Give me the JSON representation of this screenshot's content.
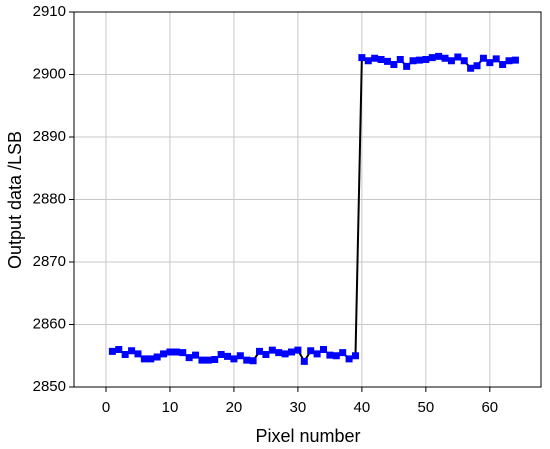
{
  "chart_data": {
    "type": "line",
    "x_label": "Pixel number",
    "y_label": "Output data /LSB",
    "x": [
      1,
      2,
      3,
      4,
      5,
      6,
      7,
      8,
      9,
      10,
      11,
      12,
      13,
      14,
      15,
      16,
      17,
      18,
      19,
      20,
      21,
      22,
      23,
      24,
      25,
      26,
      27,
      28,
      29,
      30,
      31,
      32,
      33,
      34,
      35,
      36,
      37,
      38,
      39,
      40,
      41,
      42,
      43,
      44,
      45,
      46,
      47,
      48,
      49,
      50,
      51,
      52,
      53,
      54,
      55,
      56,
      57,
      58,
      59,
      60,
      61,
      62,
      63,
      64
    ],
    "series": [
      {
        "color": "#0000ff",
        "line_color": "#000000",
        "values": [
          2855.7,
          2856,
          2855.2,
          2855.8,
          2855.3,
          2854.5,
          2854.5,
          2854.8,
          2855.3,
          2855.6,
          2855.6,
          2855.5,
          2854.7,
          2855.1,
          2854.3,
          2854.3,
          2854.4,
          2855.2,
          2854.9,
          2854.5,
          2855,
          2854.3,
          2854.2,
          2855.7,
          2855.2,
          2855.9,
          2855.5,
          2855.3,
          2855.6,
          2855.9,
          2854.1,
          2855.8,
          2855.3,
          2856,
          2855.1,
          2855,
          2855.5,
          2854.5,
          2855,
          2902.7,
          2902.2,
          2902.6,
          2902.4,
          2902.1,
          2901.6,
          2902.4,
          2901.3,
          2902.2,
          2902.3,
          2902.4,
          2902.7,
          2902.9,
          2902.6,
          2902.2,
          2902.8,
          2902.2,
          2901,
          2901.4,
          2902.6,
          2901.9,
          2902.5,
          2901.6,
          2902.2,
          2902.3
        ]
      }
    ],
    "xlim": [
      -5,
      68
    ],
    "xticks": [
      0,
      10,
      20,
      30,
      40,
      50,
      60
    ],
    "ylim": [
      2850,
      2910
    ],
    "yticks": [
      2850,
      2860,
      2870,
      2880,
      2890,
      2900,
      2910
    ],
    "grid": true
  }
}
